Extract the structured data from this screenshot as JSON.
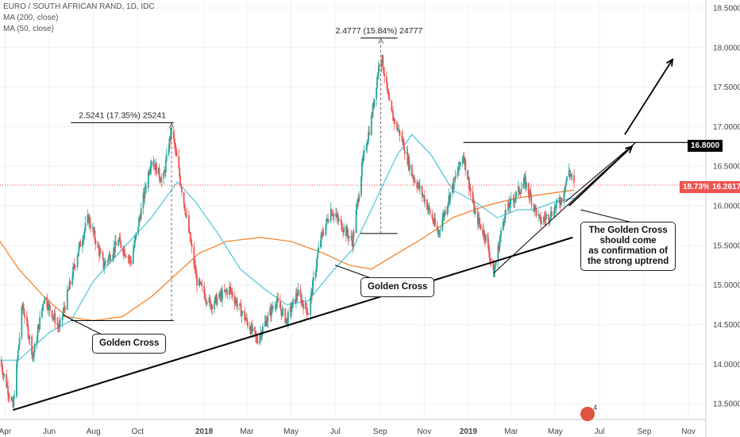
{
  "header": {
    "title": "EURO / SOUTH AFRICAN RAND, 1D, IDC",
    "ma200": "MA (200, close)",
    "ma50": "MA (50, close)"
  },
  "annotations": {
    "measure1": "2.5241 (17.35%) 25241",
    "measure2": "2.4777 (15.84%) 24777",
    "golden_cross_1": "Golden Cross",
    "golden_cross_2": "Golden Cross",
    "callout_lines": [
      "The Golden Cross",
      "should come",
      "as confirmation of",
      "the strong uptrend"
    ]
  },
  "price_tags": {
    "resistance": "16.8000",
    "pct": "18.73%",
    "last": "16.2617"
  },
  "logo_text": "4",
  "colors": {
    "up": "#26a69a",
    "down": "#ef5350",
    "ma50": "#4fc3dc",
    "ma200": "#f57c20",
    "trend": "#000000",
    "last_line": "#ef5350"
  },
  "chart_data": {
    "type": "candlestick",
    "title": "EURO / SOUTH AFRICAN RAND, 1D, IDC",
    "x_tick_labels": [
      "Apr",
      "Jun",
      "Aug",
      "Oct",
      "2018",
      "Mar",
      "May",
      "Jul",
      "Sep",
      "Nov",
      "2019",
      "Mar",
      "May",
      "Jul",
      "Sep",
      "Nov"
    ],
    "y_tick_labels": [
      "13.5000",
      "14.0000",
      "14.5000",
      "15.0000",
      "15.5000",
      "16.0000",
      "16.5000",
      "17.0000",
      "17.5000",
      "18.0000",
      "18.5000"
    ],
    "ylim": [
      13.3,
      18.6
    ],
    "grid": true,
    "price_keypoints": [
      [
        "2017-03-25",
        14.05
      ],
      [
        "2017-04-12",
        13.45
      ],
      [
        "2017-04-25",
        14.75
      ],
      [
        "2017-05-10",
        14.1
      ],
      [
        "2017-05-25",
        14.85
      ],
      [
        "2017-06-15",
        14.45
      ],
      [
        "2017-07-10",
        15.4
      ],
      [
        "2017-07-25",
        15.85
      ],
      [
        "2017-08-15",
        15.25
      ],
      [
        "2017-09-05",
        15.55
      ],
      [
        "2017-09-22",
        15.3
      ],
      [
        "2017-10-05",
        15.9
      ],
      [
        "2017-10-20",
        16.6
      ],
      [
        "2017-11-05",
        16.3
      ],
      [
        "2017-11-17",
        16.98
      ],
      [
        "2017-12-05",
        16.0
      ],
      [
        "2017-12-22",
        15.05
      ],
      [
        "2018-01-10",
        14.75
      ],
      [
        "2018-02-05",
        14.95
      ],
      [
        "2018-02-25",
        14.6
      ],
      [
        "2018-03-15",
        14.3
      ],
      [
        "2018-04-10",
        14.8
      ],
      [
        "2018-04-25",
        14.55
      ],
      [
        "2018-05-10",
        14.9
      ],
      [
        "2018-05-25",
        14.65
      ],
      [
        "2018-06-10",
        15.55
      ],
      [
        "2018-06-25",
        15.95
      ],
      [
        "2018-07-10",
        15.75
      ],
      [
        "2018-07-25",
        15.55
      ],
      [
        "2018-08-08",
        16.55
      ],
      [
        "2018-08-20",
        17.1
      ],
      [
        "2018-09-02",
        17.95
      ],
      [
        "2018-09-15",
        17.2
      ],
      [
        "2018-10-01",
        16.85
      ],
      [
        "2018-10-15",
        16.4
      ],
      [
        "2018-11-01",
        16.1
      ],
      [
        "2018-11-20",
        15.65
      ],
      [
        "2018-12-05",
        16.1
      ],
      [
        "2018-12-25",
        16.65
      ],
      [
        "2019-01-10",
        15.9
      ],
      [
        "2019-01-25",
        15.6
      ],
      [
        "2019-02-05",
        15.15
      ],
      [
        "2019-02-20",
        15.9
      ],
      [
        "2019-03-05",
        16.1
      ],
      [
        "2019-03-20",
        16.3
      ],
      [
        "2019-04-10",
        15.8
      ],
      [
        "2019-04-25",
        15.9
      ],
      [
        "2019-05-10",
        16.1
      ],
      [
        "2019-05-20",
        16.45
      ],
      [
        "2019-05-27",
        16.26
      ]
    ],
    "ma50_keypoints": [
      [
        "2017-03-25",
        14.05
      ],
      [
        "2017-04-20",
        14.05
      ],
      [
        "2017-06-01",
        14.4
      ],
      [
        "2017-07-01",
        14.55
      ],
      [
        "2017-08-01",
        15.05
      ],
      [
        "2017-09-10",
        15.45
      ],
      [
        "2017-10-20",
        15.85
      ],
      [
        "2017-11-25",
        16.3
      ],
      [
        "2017-12-20",
        16.05
      ],
      [
        "2018-01-20",
        15.65
      ],
      [
        "2018-02-20",
        15.2
      ],
      [
        "2018-03-25",
        14.95
      ],
      [
        "2018-04-25",
        14.75
      ],
      [
        "2018-05-25",
        14.8
      ],
      [
        "2018-06-25",
        15.15
      ],
      [
        "2018-07-25",
        15.45
      ],
      [
        "2018-08-25",
        16.05
      ],
      [
        "2018-09-25",
        16.65
      ],
      [
        "2018-10-15",
        16.9
      ],
      [
        "2018-11-10",
        16.65
      ],
      [
        "2018-12-10",
        16.2
      ],
      [
        "2019-01-10",
        16.05
      ],
      [
        "2019-02-10",
        15.85
      ],
      [
        "2019-03-10",
        15.95
      ],
      [
        "2019-04-01",
        15.95
      ],
      [
        "2019-05-01",
        16.05
      ],
      [
        "2019-05-27",
        16.1
      ]
    ],
    "ma200_keypoints": [
      [
        "2017-03-25",
        15.55
      ],
      [
        "2017-04-20",
        15.2
      ],
      [
        "2017-05-25",
        14.85
      ],
      [
        "2017-06-25",
        14.6
      ],
      [
        "2017-08-01",
        14.55
      ],
      [
        "2017-09-10",
        14.6
      ],
      [
        "2017-10-20",
        14.85
      ],
      [
        "2017-11-25",
        15.15
      ],
      [
        "2017-12-25",
        15.4
      ],
      [
        "2018-02-01",
        15.55
      ],
      [
        "2018-03-20",
        15.6
      ],
      [
        "2018-05-01",
        15.55
      ],
      [
        "2018-06-15",
        15.4
      ],
      [
        "2018-07-20",
        15.25
      ],
      [
        "2018-08-20",
        15.2
      ],
      [
        "2018-09-25",
        15.4
      ],
      [
        "2018-11-01",
        15.6
      ],
      [
        "2018-12-10",
        15.85
      ],
      [
        "2019-01-25",
        16.0
      ],
      [
        "2019-03-10",
        16.1
      ],
      [
        "2019-05-27",
        16.2
      ]
    ],
    "trendline": [
      [
        "2017-04-12",
        13.42
      ],
      [
        "2019-05-25",
        15.6
      ]
    ],
    "channel_upper": [
      [
        "2019-02-05",
        15.15
      ],
      [
        "2019-08-20",
        16.8
      ]
    ],
    "channel_lower": [
      [
        "2019-05-15",
        16.05
      ],
      [
        "2019-08-20",
        16.8
      ]
    ],
    "resistance_level": 16.8,
    "last_price": 16.2617,
    "measure1": {
      "from": [
        "2017-08-25",
        14.55
      ],
      "to": [
        "2017-11-17",
        17.05
      ],
      "x_range": [
        "2017-07-01",
        "2017-11-20"
      ]
    },
    "measure2": {
      "from": [
        "2018-08-15",
        15.65
      ],
      "to": [
        "2018-09-02",
        18.12
      ],
      "x_range": [
        "2018-08-05",
        "2018-09-25"
      ]
    },
    "arrows": [
      {
        "from": [
          "2019-05-20",
          16.0
        ],
        "to": [
          "2019-08-15",
          16.75
        ]
      },
      {
        "from": [
          "2019-08-05",
          16.9
        ],
        "to": [
          "2019-10-10",
          17.85
        ]
      }
    ]
  }
}
